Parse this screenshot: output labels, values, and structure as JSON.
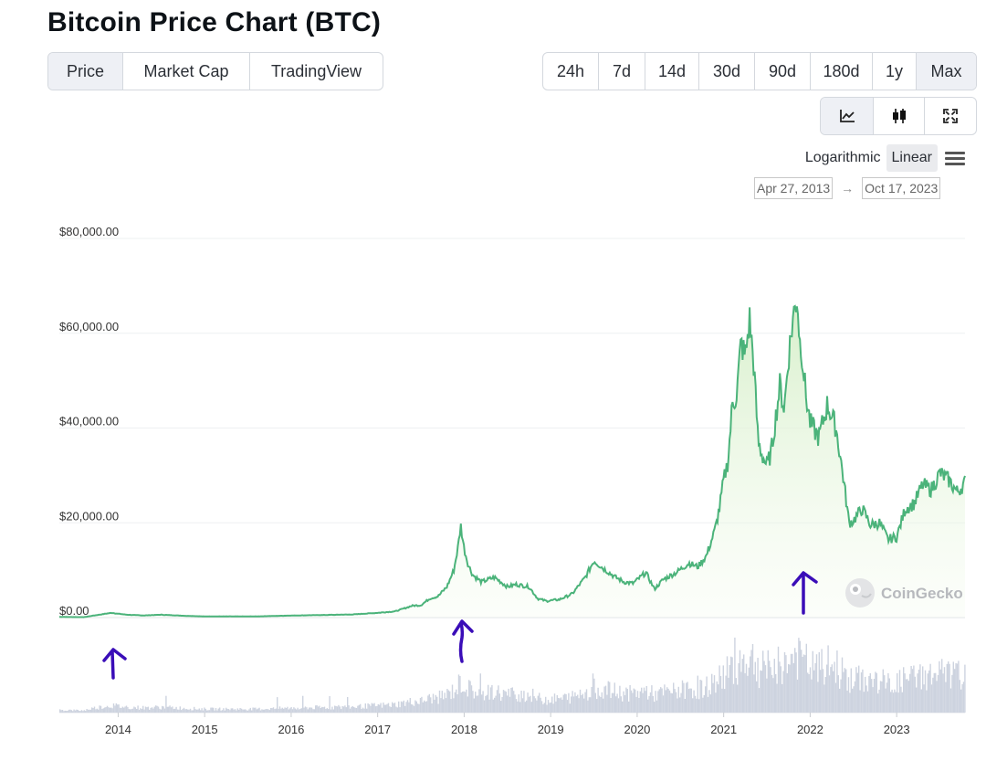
{
  "title": "Bitcoin Price Chart (BTC)",
  "tabs": [
    {
      "label": "Price",
      "active": true
    },
    {
      "label": "Market Cap",
      "active": false
    },
    {
      "label": "TradingView",
      "active": false
    }
  ],
  "ranges": [
    {
      "label": "24h",
      "active": false
    },
    {
      "label": "7d",
      "active": false
    },
    {
      "label": "14d",
      "active": false
    },
    {
      "label": "30d",
      "active": false
    },
    {
      "label": "90d",
      "active": false
    },
    {
      "label": "180d",
      "active": false
    },
    {
      "label": "1y",
      "active": false
    },
    {
      "label": "Max",
      "active": true
    }
  ],
  "view_icons": [
    {
      "icon": "line-chart-icon",
      "active": true
    },
    {
      "icon": "candlestick-icon",
      "active": false
    },
    {
      "icon": "fullscreen-icon",
      "active": false
    }
  ],
  "scale": {
    "logarithmic": "Logarithmic",
    "linear": "Linear",
    "active": "linear",
    "menu_icon": "hamburger-menu-icon"
  },
  "date_range": {
    "from": "Apr 27, 2013",
    "arrow": "→",
    "to": "Oct 17, 2023"
  },
  "watermark": {
    "text": "CoinGecko",
    "icon": "coingecko-logo-icon"
  },
  "colors": {
    "line": "#4bb37a",
    "area_top": "#d9f0cf",
    "volume": "#cdd3df",
    "annotation": "#3a0db8",
    "active_bg": "#eef0f5"
  },
  "chart_data": {
    "type": "line",
    "title": "",
    "xlabel": "",
    "ylabel": "",
    "ylim": [
      0,
      80000
    ],
    "yticks": [
      {
        "value": 0,
        "label": "$0.00"
      },
      {
        "value": 20000,
        "label": "$20,000.00"
      },
      {
        "value": 40000,
        "label": "$40,000.00"
      },
      {
        "value": 60000,
        "label": "$60,000.00"
      },
      {
        "value": 80000,
        "label": "$80,000.00"
      }
    ],
    "xlim": [
      2013.32,
      2023.79
    ],
    "xticks": [
      {
        "value": 2014,
        "label": "2014"
      },
      {
        "value": 2015,
        "label": "2015"
      },
      {
        "value": 2016,
        "label": "2016"
      },
      {
        "value": 2017,
        "label": "2017"
      },
      {
        "value": 2018,
        "label": "2018"
      },
      {
        "value": 2019,
        "label": "2019"
      },
      {
        "value": 2020,
        "label": "2020"
      },
      {
        "value": 2021,
        "label": "2021"
      },
      {
        "value": 2022,
        "label": "2022"
      },
      {
        "value": 2023,
        "label": "2023"
      }
    ],
    "grid": true,
    "legend": "none",
    "series": [
      {
        "x": [
          2013.32,
          2013.6,
          2013.85,
          2013.93,
          2014.0,
          2014.1,
          2014.3,
          2014.5,
          2014.8,
          2015.0,
          2015.3,
          2015.6,
          2016.0,
          2016.4,
          2016.7,
          2017.0,
          2017.2,
          2017.4,
          2017.5,
          2017.6,
          2017.7,
          2017.8,
          2017.88,
          2017.93,
          2017.96,
          2018.0,
          2018.05,
          2018.1,
          2018.2,
          2018.35,
          2018.5,
          2018.6,
          2018.75,
          2018.85,
          2018.95,
          2019.1,
          2019.25,
          2019.4,
          2019.5,
          2019.6,
          2019.75,
          2019.85,
          2019.95,
          2020.1,
          2020.2,
          2020.3,
          2020.45,
          2020.6,
          2020.7,
          2020.8,
          2020.9,
          2020.95,
          2021.0,
          2021.05,
          2021.1,
          2021.15,
          2021.2,
          2021.25,
          2021.3,
          2021.35,
          2021.4,
          2021.45,
          2021.5,
          2021.55,
          2021.6,
          2021.65,
          2021.7,
          2021.75,
          2021.8,
          2021.85,
          2021.88,
          2021.9,
          2021.95,
          2022.0,
          2022.1,
          2022.2,
          2022.3,
          2022.38,
          2022.45,
          2022.5,
          2022.6,
          2022.7,
          2022.8,
          2022.9,
          2023.0,
          2023.1,
          2023.2,
          2023.3,
          2023.4,
          2023.5,
          2023.6,
          2023.7,
          2023.79
        ],
        "y": [
          135,
          90,
          800,
          1000,
          800,
          600,
          450,
          600,
          350,
          250,
          250,
          250,
          430,
          550,
          650,
          1000,
          1300,
          2500,
          2600,
          4000,
          4500,
          6500,
          10000,
          15000,
          19500,
          14500,
          11000,
          9000,
          7500,
          8500,
          6500,
          7000,
          6500,
          4000,
          3500,
          3800,
          5000,
          8500,
          12000,
          10500,
          8500,
          7500,
          7200,
          9500,
          6000,
          8000,
          9500,
          11500,
          10700,
          13000,
          18500,
          23000,
          29000,
          33000,
          45000,
          47000,
          58000,
          55000,
          63000,
          53000,
          37000,
          34000,
          32000,
          35000,
          42000,
          49000,
          44000,
          55000,
          63000,
          68000,
          58000,
          57000,
          47000,
          41000,
          38000,
          45000,
          40000,
          30000,
          20000,
          20500,
          23000,
          19500,
          20000,
          16500,
          17000,
          23000,
          24000,
          28000,
          27000,
          30500,
          29000,
          26500,
          28500
        ]
      }
    ],
    "volume": {
      "description": "trading volume histogram below price, rising from near zero pre-2017 to highest around 2021"
    }
  },
  "annotations": [
    {
      "type": "arrow",
      "name": "arrow-2014"
    },
    {
      "type": "arrow",
      "name": "arrow-2018"
    },
    {
      "type": "arrow",
      "name": "arrow-2022"
    }
  ]
}
